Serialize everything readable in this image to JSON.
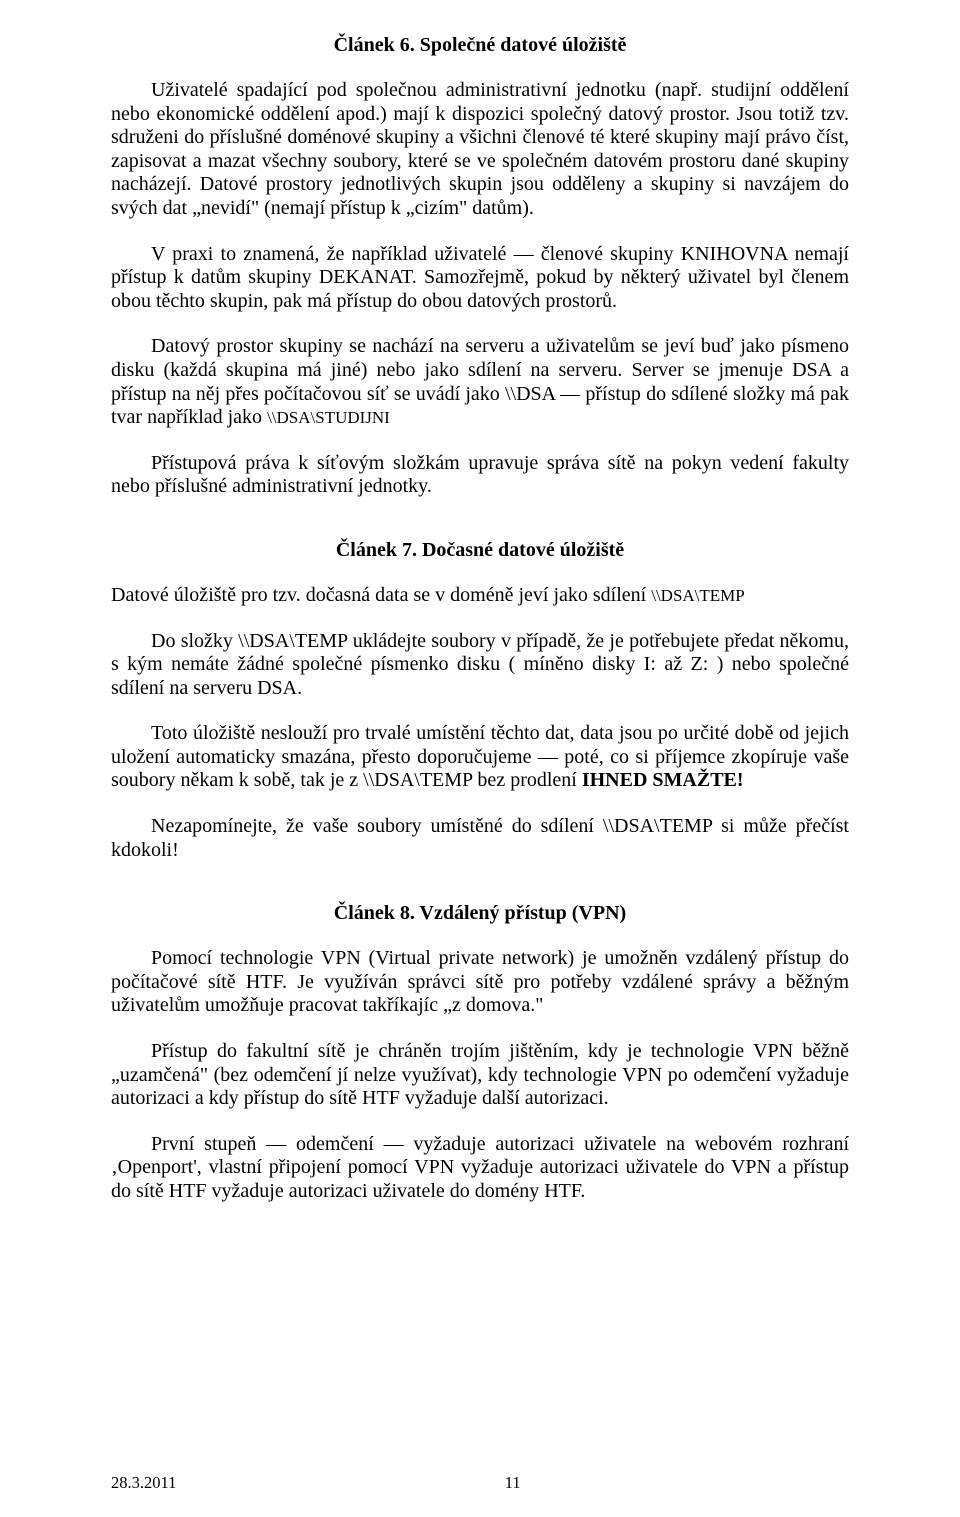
{
  "article6": {
    "heading": "Článek 6. Společné datové úložiště",
    "p1a": "Uživatelé spadající pod společnou administrativní jednotku (např. studijní oddělení nebo ekonomické oddělení apod.) mají k dispozici společný datový prostor. Jsou totiž tzv. sdruženi do příslušné doménové skupiny a všichni členové té které skupiny mají právo číst, zapisovat a mazat všechny soubory, které se ve společném datovém prostoru dané skupiny nacházejí. Datové prostory jednotlivých skupin jsou odděleny a skupiny si navzájem do svých dat „nevidí\" (nemají přístup k „cizím\" datům).",
    "p2": "V praxi to znamená, že například uživatelé — členové skupiny KNIHOVNA nemají přístup k datům skupiny DEKANAT. Samozřejmě, pokud by některý uživatel byl členem obou těchto skupin, pak má přístup do obou datových prostorů.",
    "p3a": "Datový prostor skupiny se nachází na serveru a uživatelům se jeví buď jako písmeno disku (každá skupina má jiné) nebo jako sdílení na serveru. Server se jmenuje DSA a přístup na něj přes počítačovou síť se uvádí jako \\\\DSA — přístup do sdílené složky má pak tvar například jako ",
    "p3b": "\\\\DSA\\STUDIJNI",
    "p4": "Přístupová práva k síťovým složkám upravuje správa sítě na pokyn vedení fakulty nebo příslušné administrativní jednotky."
  },
  "article7": {
    "heading": "Článek 7. Dočasné datové úložiště",
    "p1a": "Datové úložiště pro tzv. dočasná data se v doméně jeví jako sdílení ",
    "p1b": "\\\\DSA\\TEMP",
    "p2": "Do složky \\\\DSA\\TEMP ukládejte soubory v případě, že je potřebujete předat někomu, s kým nemáte žádné společné písmenko disku ( míněno disky I: až Z: ) nebo společné sdílení na serveru DSA.",
    "p3a": "Toto úložiště neslouží pro trvalé umístění těchto dat, data jsou po určité době od jejich uložení automaticky smazána, přesto doporučujeme — poté, co si příjemce zkopíruje vaše soubory někam k sobě, tak je z \\\\DSA\\TEMP bez prodlení ",
    "p3b": "IHNED SMAŽTE!",
    "p4": "Nezapomínejte, že vaše soubory umístěné do sdílení \\\\DSA\\TEMP si může přečíst kdokoli!"
  },
  "article8": {
    "heading": "Článek 8. Vzdálený přístup (VPN)",
    "p1": "Pomocí technologie VPN (Virtual private network) je umožněn vzdálený přístup do počítačové sítě HTF. Je využíván správci sítě pro potřeby vzdálené správy a běžným uživatelům umožňuje pracovat takříkajíc „z domova.\"",
    "p2": "Přístup do fakultní sítě je chráněn trojím jištěním, kdy je technologie VPN běžně „uzamčená\" (bez odemčení jí nelze využívat), kdy technologie VPN po odemčení vyžaduje autorizaci a kdy přístup do sítě HTF vyžaduje další autorizaci.",
    "p3": "První stupeň — odemčení — vyžaduje autorizaci uživatele na webovém rozhraní ‚Openport', vlastní připojení pomocí VPN vyžaduje autorizaci uživatele do VPN a přístup do sítě HTF vyžaduje autorizaci uživatele do domény HTF."
  },
  "footer": {
    "date": "28.3.2011",
    "page": "11"
  }
}
